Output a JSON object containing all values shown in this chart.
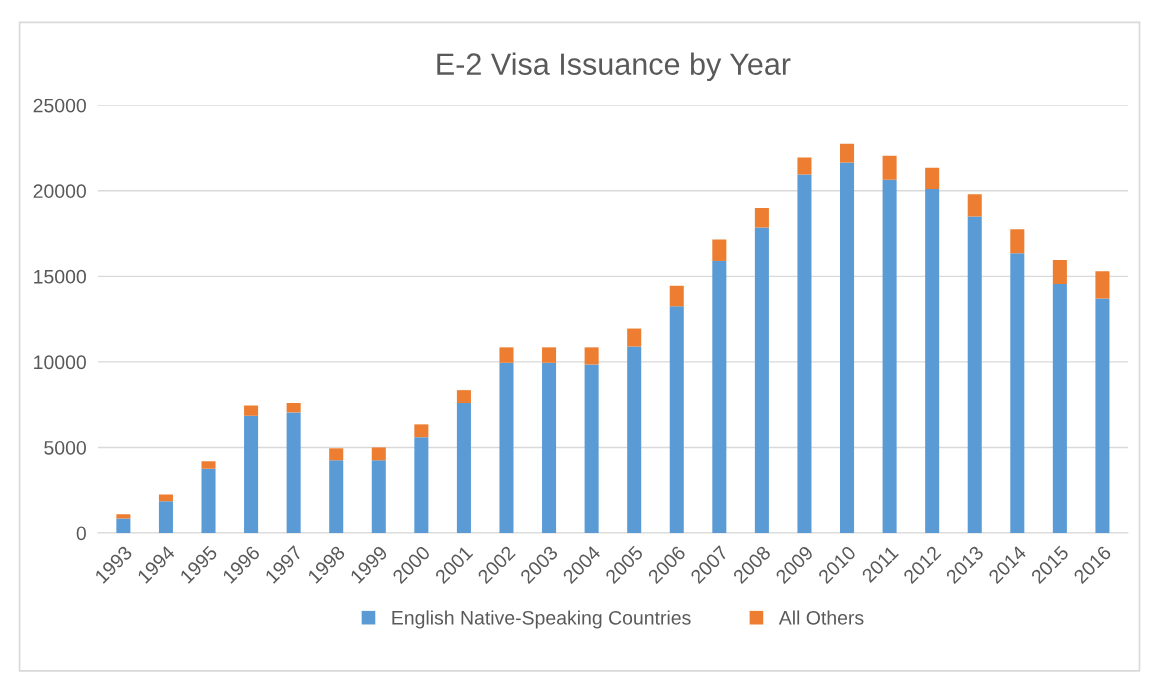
{
  "chart_data": {
    "type": "bar",
    "title": "E-2 Visa Issuance by Year",
    "stacked": true,
    "categories": [
      "1993",
      "1994",
      "1995",
      "1996",
      "1997",
      "1998",
      "1999",
      "2000",
      "2001",
      "2002",
      "2003",
      "2004",
      "2005",
      "2006",
      "2007",
      "2008",
      "2009",
      "2010",
      "2011",
      "2012",
      "2013",
      "2014",
      "2015",
      "2016"
    ],
    "series": [
      {
        "name": "English Native-Speaking Countries",
        "color": "#5b9bd5",
        "values": [
          850,
          1850,
          3750,
          6850,
          7050,
          4250,
          4250,
          5600,
          7600,
          9950,
          9950,
          9850,
          10900,
          13250,
          15900,
          17850,
          20950,
          21650,
          20650,
          20100,
          18500,
          16350,
          14550,
          13700
        ]
      },
      {
        "name": "All Others",
        "color": "#ed7d31",
        "values": [
          250,
          400,
          450,
          600,
          550,
          700,
          750,
          750,
          750,
          900,
          900,
          1000,
          1050,
          1200,
          1250,
          1150,
          1000,
          1100,
          1400,
          1250,
          1300,
          1400,
          1400,
          1600
        ]
      }
    ],
    "ylim": [
      0,
      25000
    ],
    "yticks": [
      0,
      5000,
      10000,
      15000,
      20000,
      25000
    ],
    "grid": "y",
    "legend": "bottom"
  }
}
